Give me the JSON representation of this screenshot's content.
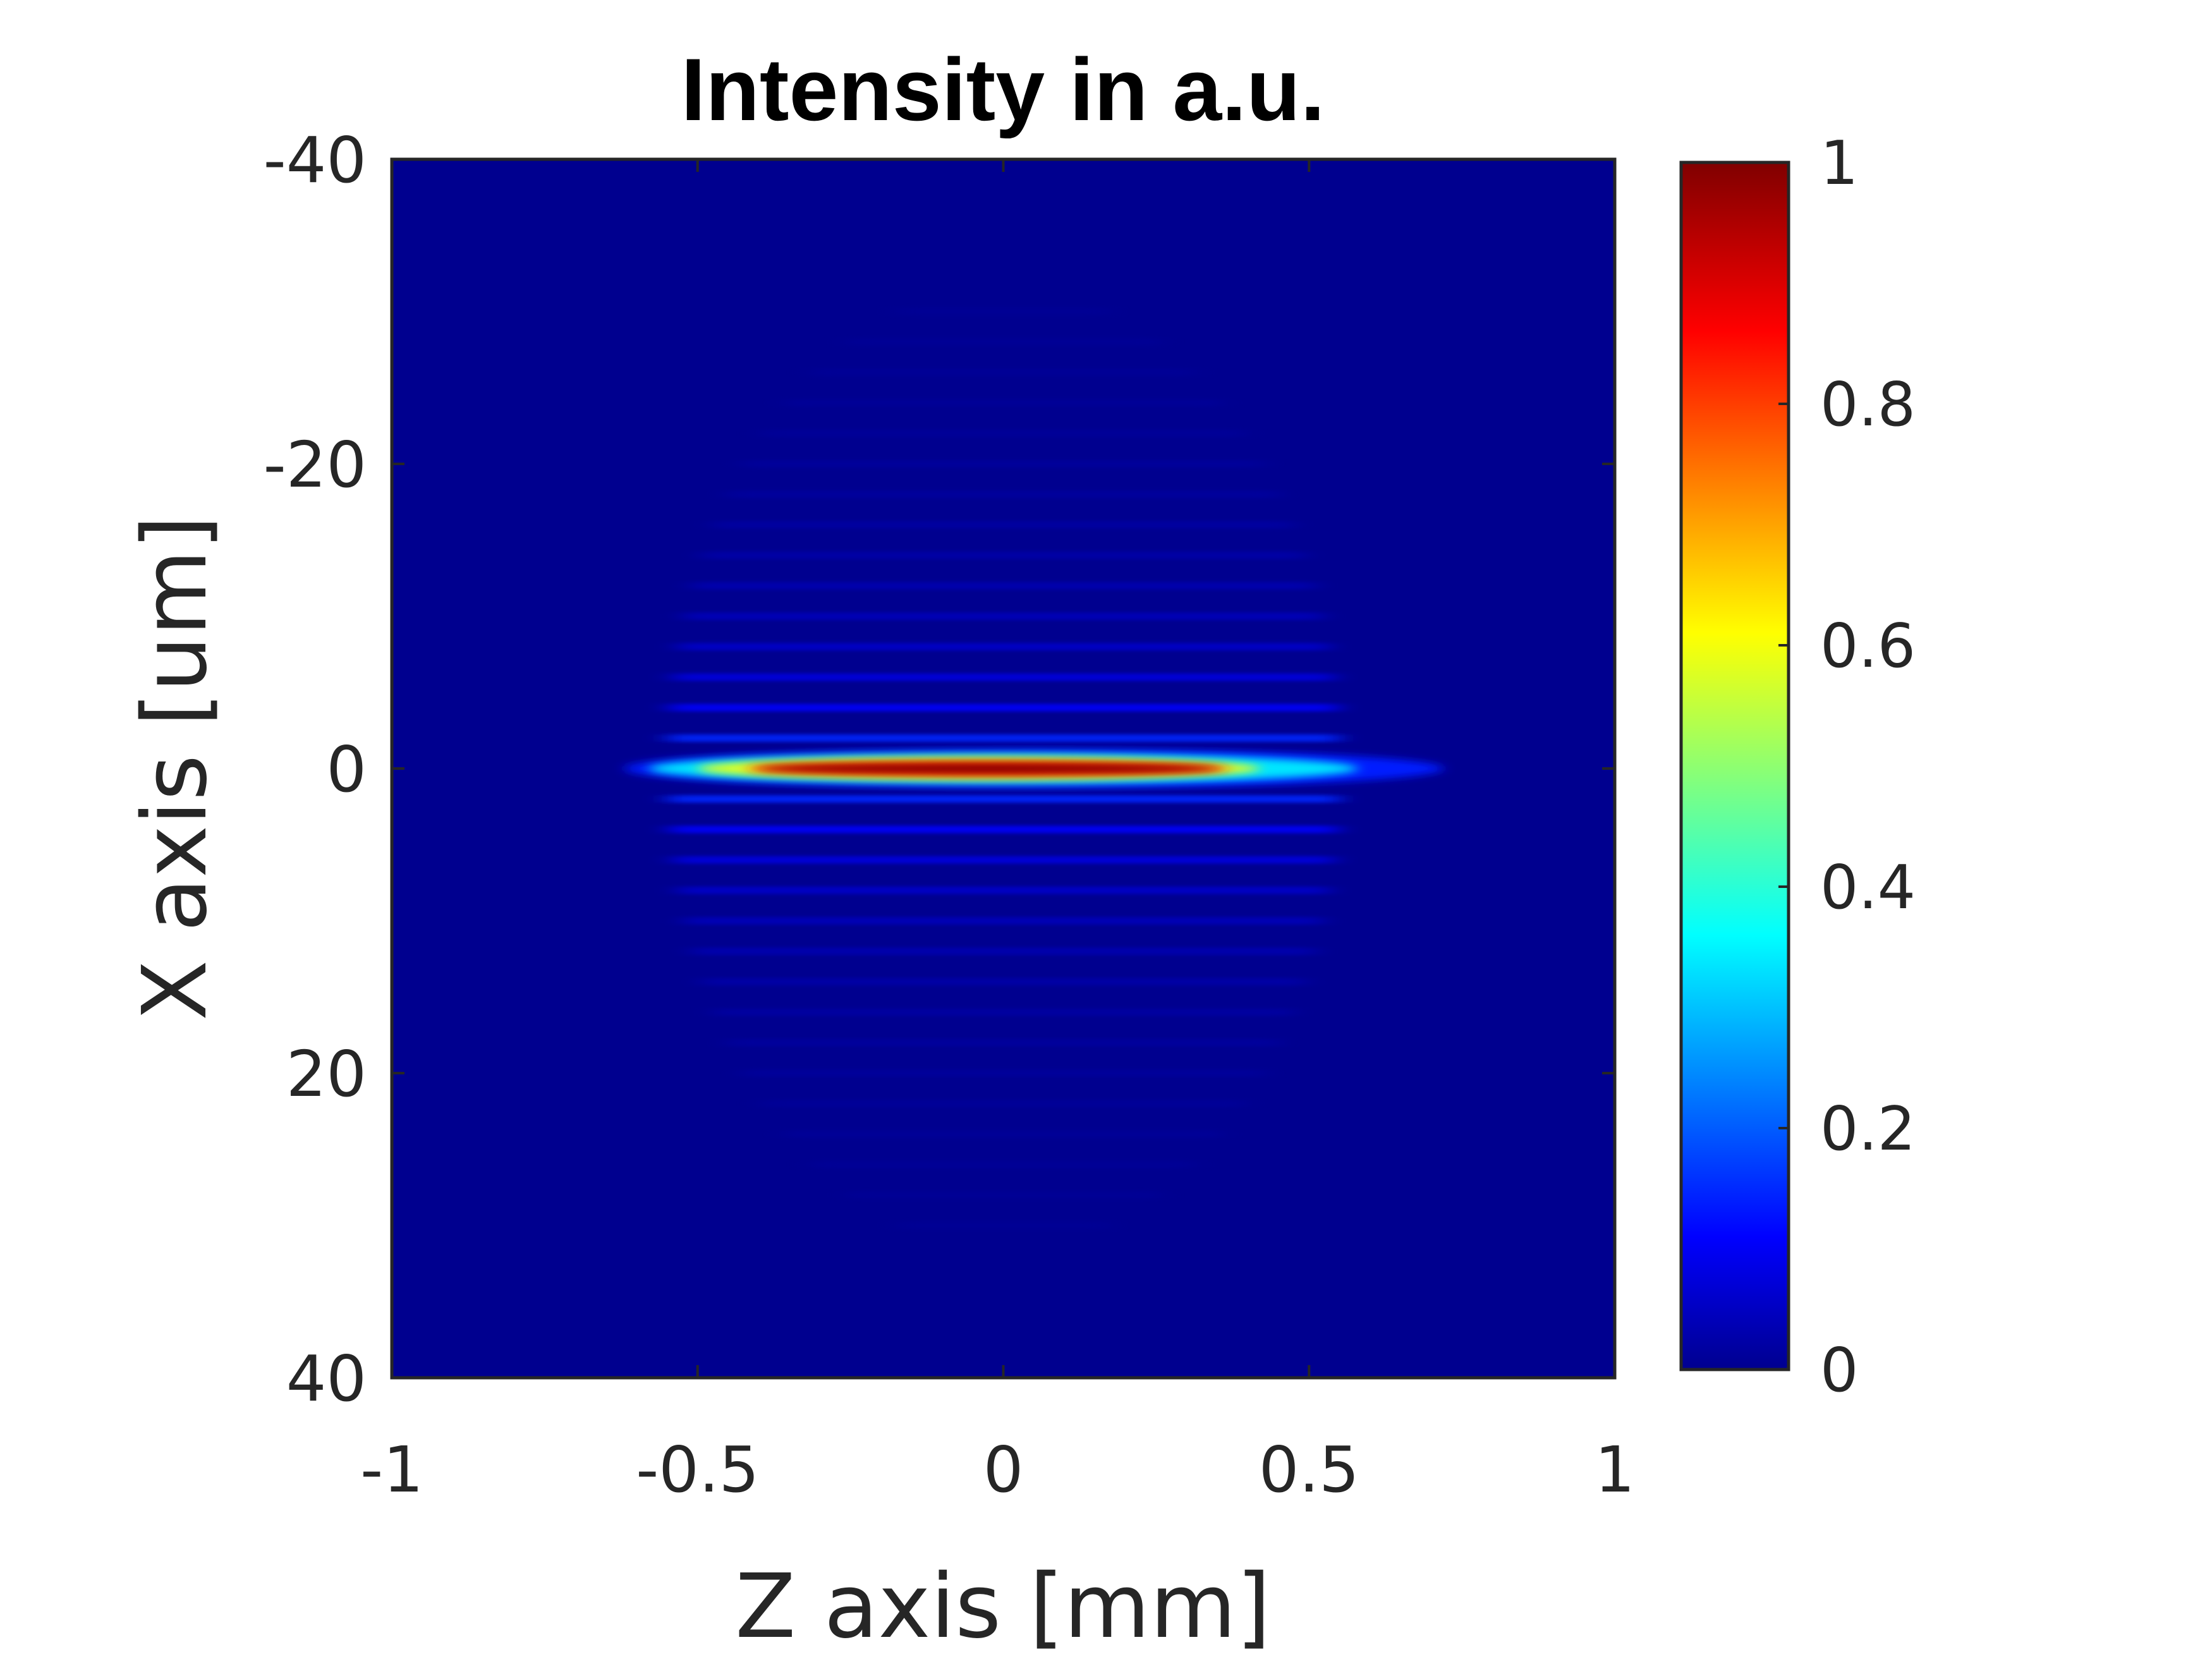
{
  "chart_data": {
    "type": "heatmap",
    "title": "Intensity in a.u.",
    "xlabel": "Z axis [mm]",
    "ylabel": "X axis [um]",
    "xlim": [
      -1,
      1
    ],
    "ylim": [
      -40,
      40
    ],
    "y_axis_direction": "reversed",
    "x_ticks": [
      -1,
      -0.5,
      0,
      0.5,
      1
    ],
    "x_tick_labels": [
      "-1",
      "-0.5",
      "0",
      "0.5",
      "1"
    ],
    "y_ticks": [
      -40,
      -20,
      0,
      20,
      40
    ],
    "y_tick_labels": [
      "-40",
      "-20",
      "0",
      "20",
      "40"
    ],
    "colormap": "jet",
    "colorbar": {
      "range": [
        0,
        1
      ],
      "ticks": [
        0,
        0.2,
        0.4,
        0.6,
        0.8,
        1
      ],
      "tick_labels": [
        "0",
        "0.2",
        "0.4",
        "0.6",
        "0.8",
        "1"
      ],
      "colors": [
        "#00008f",
        "#0000ff",
        "#00ffff",
        "#ffff00",
        "#ff0000",
        "#800000"
      ]
    },
    "features": {
      "main_beam": {
        "x_um": 0,
        "z_start_mm": -0.62,
        "z_end_mm": 0.72,
        "peak_z_range_mm": [
          -0.4,
          0.35
        ],
        "peak_value": 1.0
      },
      "side_fringes": {
        "x_extent_um": [
          -30,
          30
        ],
        "z_extent_mm": [
          -0.55,
          0.55
        ],
        "fringe_spacing_um": 2,
        "max_value": 0.2
      }
    },
    "background_value": 0.0,
    "grid": false,
    "legend": "none"
  }
}
